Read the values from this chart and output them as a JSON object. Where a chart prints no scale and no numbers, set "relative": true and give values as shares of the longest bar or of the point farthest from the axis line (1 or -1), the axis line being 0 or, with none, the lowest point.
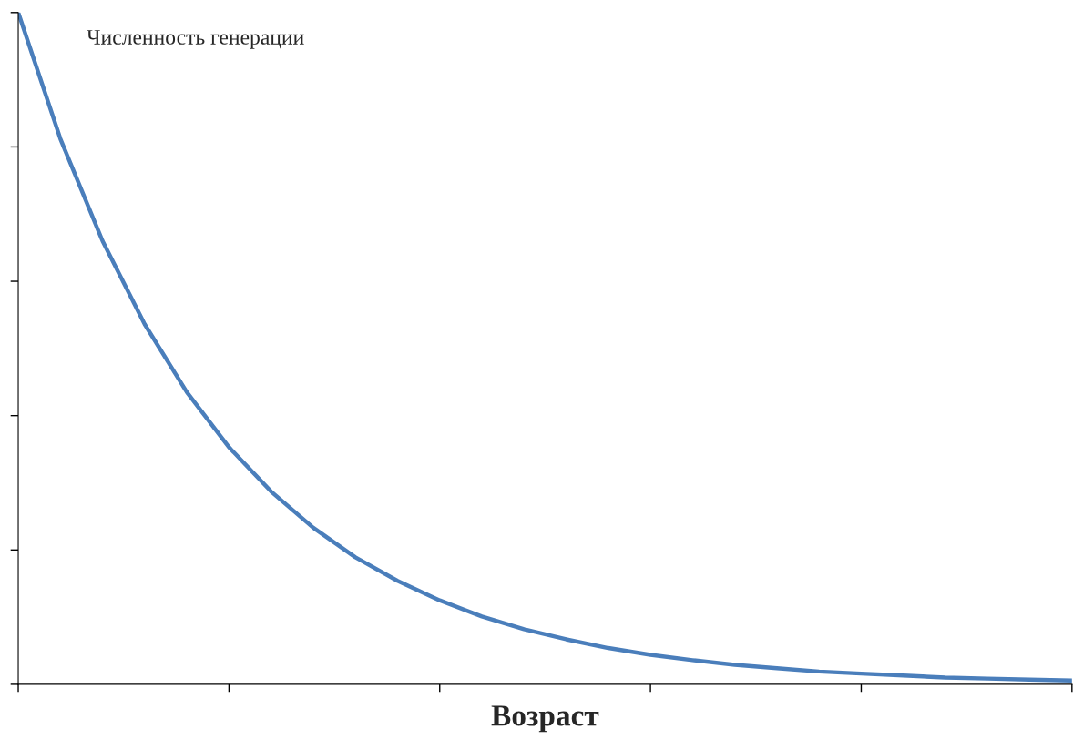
{
  "chart_data": {
    "type": "line",
    "relative": true,
    "ylabel": "Численность генерации",
    "xlabel": "Возраст",
    "categories": [
      null,
      null,
      null,
      null,
      null,
      null,
      null,
      null,
      null,
      null,
      null,
      null,
      null,
      null,
      null,
      null,
      null,
      null,
      null,
      null,
      null,
      null,
      null,
      null,
      null,
      null
    ],
    "series": [
      {
        "color": "#4a7ebb",
        "values": [
          1,
          0.812,
          0.66,
          0.536,
          0.435,
          0.353,
          0.287,
          0.233,
          0.189,
          0.154,
          0.125,
          0.101,
          0.082,
          0.067,
          0.054,
          0.044,
          0.036,
          0.029,
          0.024,
          0.019,
          0.016,
          0.013,
          0.01,
          0.0085,
          0.0069,
          0.0056
        ]
      }
    ],
    "grid": false,
    "legend": false
  }
}
